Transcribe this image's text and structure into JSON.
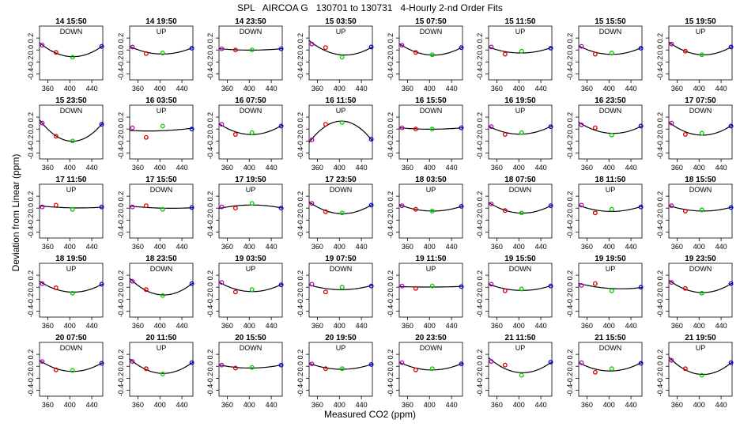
{
  "title": "SPL   AIRCOA G   130701 to 130731   4-Hourly 2-nd Order Fits",
  "xlabel": "Measured CO2 (ppm)",
  "ylabel": "Deviation from Linear (ppm)",
  "colors": {
    "axis": "#000000",
    "curve": "#000000",
    "pt_low": "#b000b0",
    "pt_mid_low": "#e00000",
    "pt_mid_high": "#00cc00",
    "pt_high": "#0000e0"
  },
  "chart_data": {
    "type": "scatter",
    "layout": "small-multiples 5 rows x 8 columns",
    "xlim": [
      345,
      460
    ],
    "ylim": [
      -0.5,
      0.4
    ],
    "xticks": [
      360,
      400,
      440
    ],
    "yticks": [
      -0.4,
      -0.2,
      0.0,
      0.2
    ],
    "xtick_labels": [
      "360",
      "400",
      "440"
    ],
    "ytick_labels": [
      "-0.4",
      "-0.2",
      "0.0",
      "0.2"
    ],
    "x_levels": [
      350,
      375,
      405,
      458
    ],
    "panels": [
      {
        "label": "14 15:50",
        "dir": "DOWN",
        "y": [
          0.08,
          -0.04,
          -0.12,
          0.06
        ]
      },
      {
        "label": "14 19:50",
        "dir": "UP",
        "y": [
          0.05,
          -0.06,
          -0.05,
          0.03
        ]
      },
      {
        "label": "14 23:50",
        "dir": "DOWN",
        "y": [
          0.02,
          0.0,
          0.0,
          0.02
        ]
      },
      {
        "label": "15 03:50",
        "dir": "UP",
        "y": [
          0.1,
          0.04,
          -0.12,
          0.05
        ]
      },
      {
        "label": "15 07:50",
        "dir": "DOWN",
        "y": [
          0.08,
          -0.04,
          -0.08,
          0.04
        ]
      },
      {
        "label": "15 11:50",
        "dir": "UP",
        "y": [
          0.05,
          -0.07,
          -0.02,
          0.03
        ]
      },
      {
        "label": "15 15:50",
        "dir": "DOWN",
        "y": [
          0.06,
          -0.07,
          -0.05,
          0.03
        ]
      },
      {
        "label": "15 19:50",
        "dir": "UP",
        "y": [
          0.1,
          -0.02,
          -0.08,
          0.05
        ]
      },
      {
        "label": "15 23:50",
        "dir": "DOWN",
        "y": [
          0.1,
          -0.12,
          -0.2,
          0.08
        ]
      },
      {
        "label": "16 03:50",
        "dir": "UP",
        "y": [
          0.02,
          -0.14,
          0.05,
          0.0
        ]
      },
      {
        "label": "16 07:50",
        "dir": "DOWN",
        "y": [
          0.08,
          -0.09,
          -0.06,
          0.05
        ]
      },
      {
        "label": "16 11:50",
        "dir": "UP",
        "y": [
          -0.18,
          0.08,
          0.11,
          -0.17
        ]
      },
      {
        "label": "16 15:50",
        "dir": "DOWN",
        "y": [
          0.02,
          0.0,
          0.0,
          0.02
        ]
      },
      {
        "label": "16 19:50",
        "dir": "UP",
        "y": [
          0.04,
          -0.09,
          -0.06,
          0.04
        ]
      },
      {
        "label": "16 23:50",
        "dir": "DOWN",
        "y": [
          0.07,
          0.02,
          -0.1,
          0.05
        ]
      },
      {
        "label": "17 07:50",
        "dir": "DOWN",
        "y": [
          0.1,
          -0.09,
          -0.07,
          0.05
        ]
      },
      {
        "label": "17 11:50",
        "dir": "UP",
        "y": [
          0.02,
          0.05,
          -0.02,
          0.02
        ]
      },
      {
        "label": "17 15:50",
        "dir": "DOWN",
        "y": [
          0.02,
          0.04,
          -0.02,
          0.01
        ]
      },
      {
        "label": "17 19:50",
        "dir": "UP",
        "y": [
          0.02,
          0.0,
          0.08,
          0.0
        ]
      },
      {
        "label": "17 23:50",
        "dir": "DOWN",
        "y": [
          0.08,
          -0.06,
          -0.08,
          0.05
        ]
      },
      {
        "label": "18 03:50",
        "dir": "UP",
        "y": [
          0.04,
          -0.02,
          -0.05,
          0.03
        ]
      },
      {
        "label": "18 07:50",
        "dir": "DOWN",
        "y": [
          0.07,
          -0.04,
          -0.08,
          0.04
        ]
      },
      {
        "label": "18 11:50",
        "dir": "UP",
        "y": [
          0.05,
          -0.08,
          -0.02,
          0.02
        ]
      },
      {
        "label": "18 15:50",
        "dir": "DOWN",
        "y": [
          0.04,
          -0.05,
          -0.03,
          0.01
        ]
      },
      {
        "label": "18 19:50",
        "dir": "UP",
        "y": [
          0.06,
          -0.01,
          -0.1,
          0.05
        ]
      },
      {
        "label": "18 23:50",
        "dir": "DOWN",
        "y": [
          0.1,
          -0.04,
          -0.14,
          0.06
        ]
      },
      {
        "label": "19 03:50",
        "dir": "UP",
        "y": [
          0.08,
          -0.08,
          -0.04,
          0.04
        ]
      },
      {
        "label": "19 07:50",
        "dir": "DOWN",
        "y": [
          0.05,
          -0.08,
          0.0,
          0.02
        ]
      },
      {
        "label": "19 11:50",
        "dir": "UP",
        "y": [
          0.02,
          -0.02,
          0.02,
          0.01
        ]
      },
      {
        "label": "19 15:50",
        "dir": "DOWN",
        "y": [
          0.05,
          -0.06,
          -0.03,
          0.02
        ]
      },
      {
        "label": "19 19:50",
        "dir": "UP",
        "y": [
          0.03,
          0.06,
          -0.06,
          0.0
        ]
      },
      {
        "label": "19 23:50",
        "dir": "DOWN",
        "y": [
          0.08,
          -0.02,
          -0.1,
          0.06
        ]
      },
      {
        "label": "20 07:50",
        "dir": "DOWN",
        "y": [
          0.08,
          -0.06,
          -0.07,
          0.05
        ]
      },
      {
        "label": "20 11:50",
        "dir": "UP",
        "y": [
          0.08,
          -0.04,
          -0.13,
          0.06
        ]
      },
      {
        "label": "20 15:50",
        "dir": "DOWN",
        "y": [
          0.02,
          -0.03,
          -0.02,
          0.02
        ]
      },
      {
        "label": "20 19:50",
        "dir": "UP",
        "y": [
          0.04,
          -0.04,
          -0.04,
          0.03
        ]
      },
      {
        "label": "20 23:50",
        "dir": "DOWN",
        "y": [
          0.06,
          -0.06,
          -0.04,
          0.04
        ]
      },
      {
        "label": "21 11:50",
        "dir": "UP",
        "y": [
          0.08,
          0.02,
          -0.15,
          0.07
        ]
      },
      {
        "label": "21 15:50",
        "dir": "DOWN",
        "y": [
          0.06,
          -0.1,
          -0.04,
          0.05
        ]
      },
      {
        "label": "21 19:50",
        "dir": "UP",
        "y": [
          0.1,
          -0.04,
          -0.15,
          0.06
        ]
      }
    ]
  }
}
